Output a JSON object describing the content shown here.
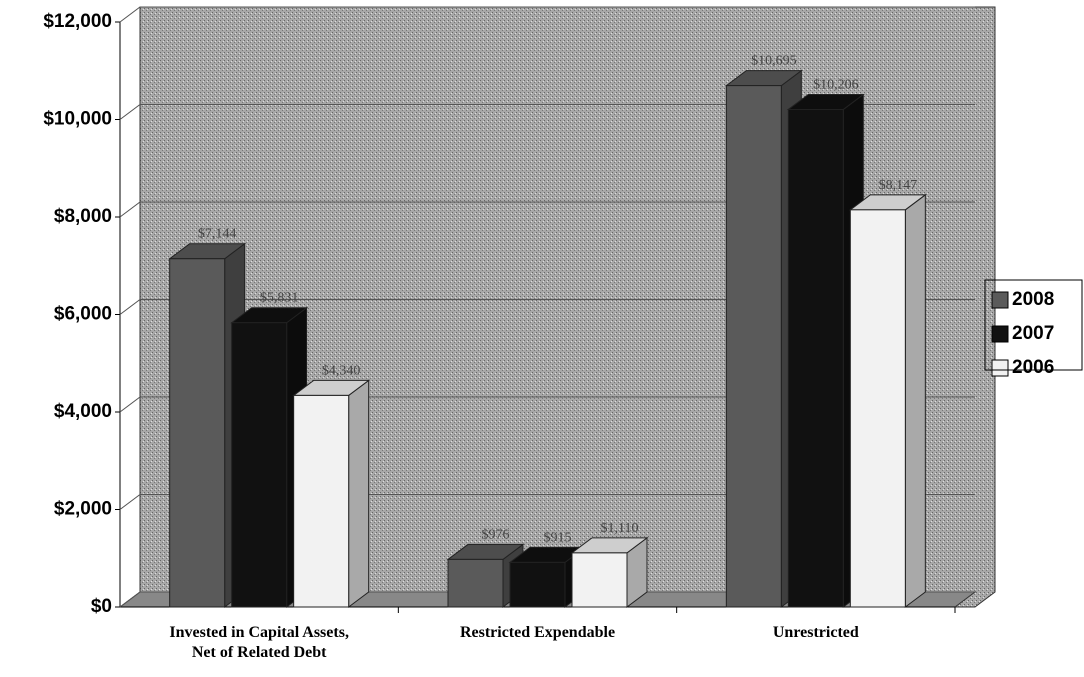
{
  "chart_data": {
    "type": "bar3d",
    "categories": [
      "Invested in Capital Assets,\nNet of Related Debt",
      "Restricted Expendable",
      "Unrestricted"
    ],
    "series": [
      {
        "name": "2008",
        "color": "#5a5a5a",
        "values": [
          7144,
          976,
          10695
        ],
        "value_labels": [
          "$7,144",
          "$976",
          "$10,695"
        ]
      },
      {
        "name": "2007",
        "color": "#111111",
        "values": [
          5831,
          915,
          10206
        ],
        "value_labels": [
          "$5,831",
          "$915",
          "$10,206"
        ]
      },
      {
        "name": "2006",
        "color": "#f2f2f2",
        "values": [
          4340,
          1110,
          8147
        ],
        "value_labels": [
          "$4,340",
          "$1,110",
          "$8,147"
        ]
      }
    ],
    "ylim": [
      0,
      12000
    ],
    "yticks": [
      {
        "value": 0,
        "label": "$0"
      },
      {
        "value": 2000,
        "label": "$2,000"
      },
      {
        "value": 4000,
        "label": "$4,000"
      },
      {
        "value": 6000,
        "label": "$6,000"
      },
      {
        "value": 8000,
        "label": "$8,000"
      },
      {
        "value": 10000,
        "label": "$10,000"
      },
      {
        "value": 12000,
        "label": "$12,000"
      }
    ],
    "grid": true,
    "legend": "right"
  }
}
